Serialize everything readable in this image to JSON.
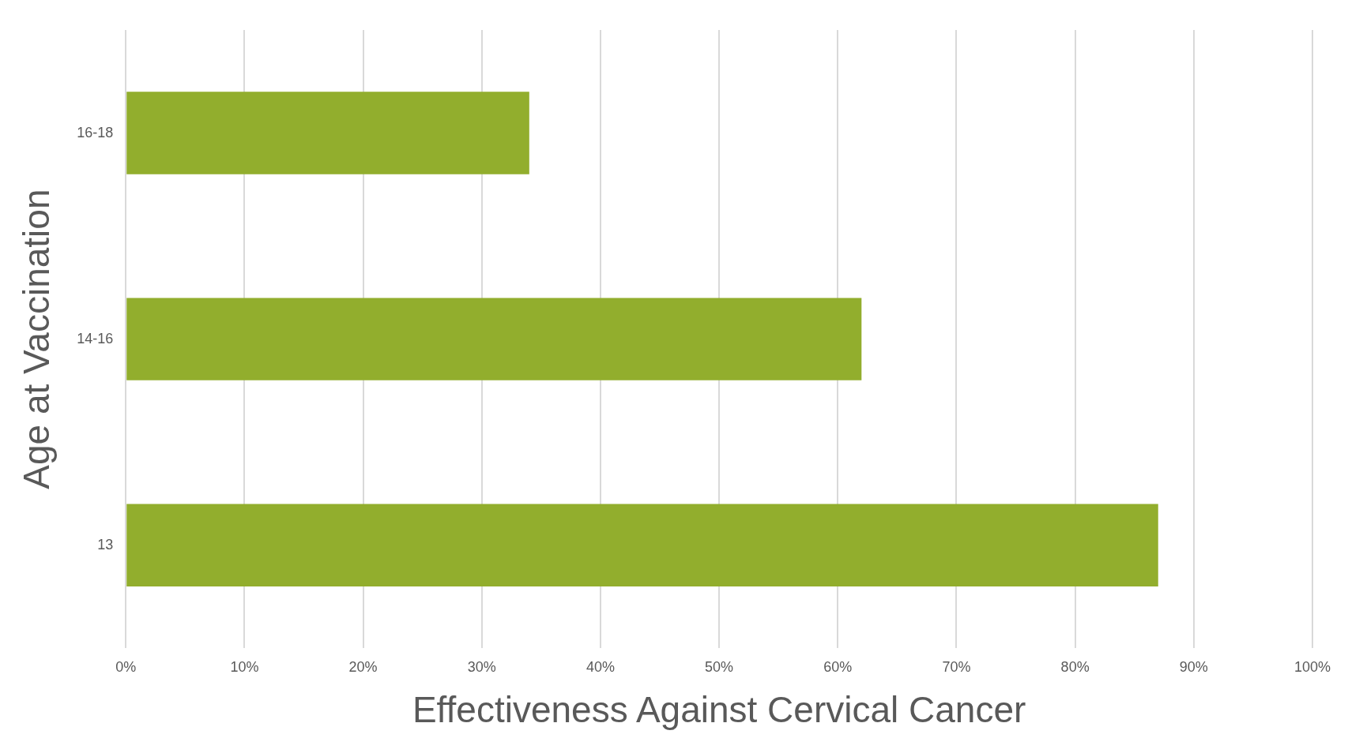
{
  "chart_data": {
    "type": "bar",
    "orientation": "horizontal",
    "xlabel": "Effectiveness Against Cervical Cancer",
    "ylabel": "Age at Vaccination",
    "categories": [
      "16-18",
      "14-16",
      "13"
    ],
    "values": [
      34,
      62,
      87
    ],
    "color": "#92ae2d",
    "xlim": [
      0,
      100
    ],
    "xticks": [
      {
        "value": 0,
        "label": "0%"
      },
      {
        "value": 10,
        "label": "10%"
      },
      {
        "value": 20,
        "label": "20%"
      },
      {
        "value": 30,
        "label": "30%"
      },
      {
        "value": 40,
        "label": "40%"
      },
      {
        "value": 50,
        "label": "50%"
      },
      {
        "value": 60,
        "label": "60%"
      },
      {
        "value": 70,
        "label": "70%"
      },
      {
        "value": 80,
        "label": "80%"
      },
      {
        "value": 90,
        "label": "90%"
      },
      {
        "value": 100,
        "label": "100%"
      }
    ],
    "grid": "x"
  }
}
